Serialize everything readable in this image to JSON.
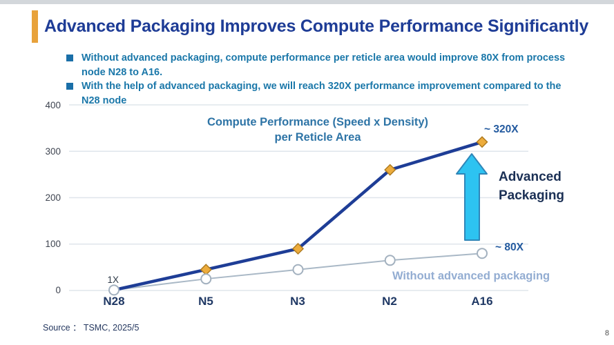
{
  "slide": {
    "title": "Advanced Packaging Improves Compute Performance Significantly",
    "bullets": [
      {
        "text": "Without advanced packaging, compute performance per reticle area would improve 80X from process\nnode N28 to A16."
      },
      {
        "text": "With the help of advanced packaging, we will reach 320X performance improvement compared to the\nN28 node"
      }
    ],
    "source_label": "Source ： TSMC, 2025/5",
    "page_number": "8",
    "accent_color": "#e8a23b",
    "title_color": "#1e3c96"
  },
  "chart_data": {
    "type": "line",
    "title": "Compute Performance (Speed x Density)\nper Reticle Area",
    "categories": [
      "N28",
      "N5",
      "N3",
      "N2",
      "A16"
    ],
    "series": [
      {
        "name": "With advanced packaging",
        "values": [
          1,
          45,
          90,
          260,
          320
        ],
        "color": "#1e3d96",
        "line_width": 4.5,
        "marker": "diamond",
        "marker_fill": "#edac3c",
        "marker_stroke": "#b07c20"
      },
      {
        "name": "Without advanced packaging",
        "values": [
          1,
          25,
          45,
          65,
          80
        ],
        "color": "#a9b8c6",
        "line_width": 2,
        "marker": "circle",
        "marker_fill": "#ffffff",
        "marker_stroke": "#a3b1bf"
      }
    ],
    "xlabel": "",
    "ylabel": "",
    "ylim": [
      0,
      400
    ],
    "yticks": [
      0,
      100,
      200,
      300,
      400
    ],
    "grid": true,
    "gridline_color": "#dfe5eb",
    "legend": "inline annotations",
    "annotations": {
      "start_label": "1X",
      "adv_value_label": "~ 320X",
      "base_value_label": "~ 80X",
      "arrow_label": "Advanced\nPackaging",
      "base_series_label": "Without advanced packaging",
      "arrow_color": "#2dc3f1",
      "arrow_outline": "#2f86b8"
    }
  }
}
